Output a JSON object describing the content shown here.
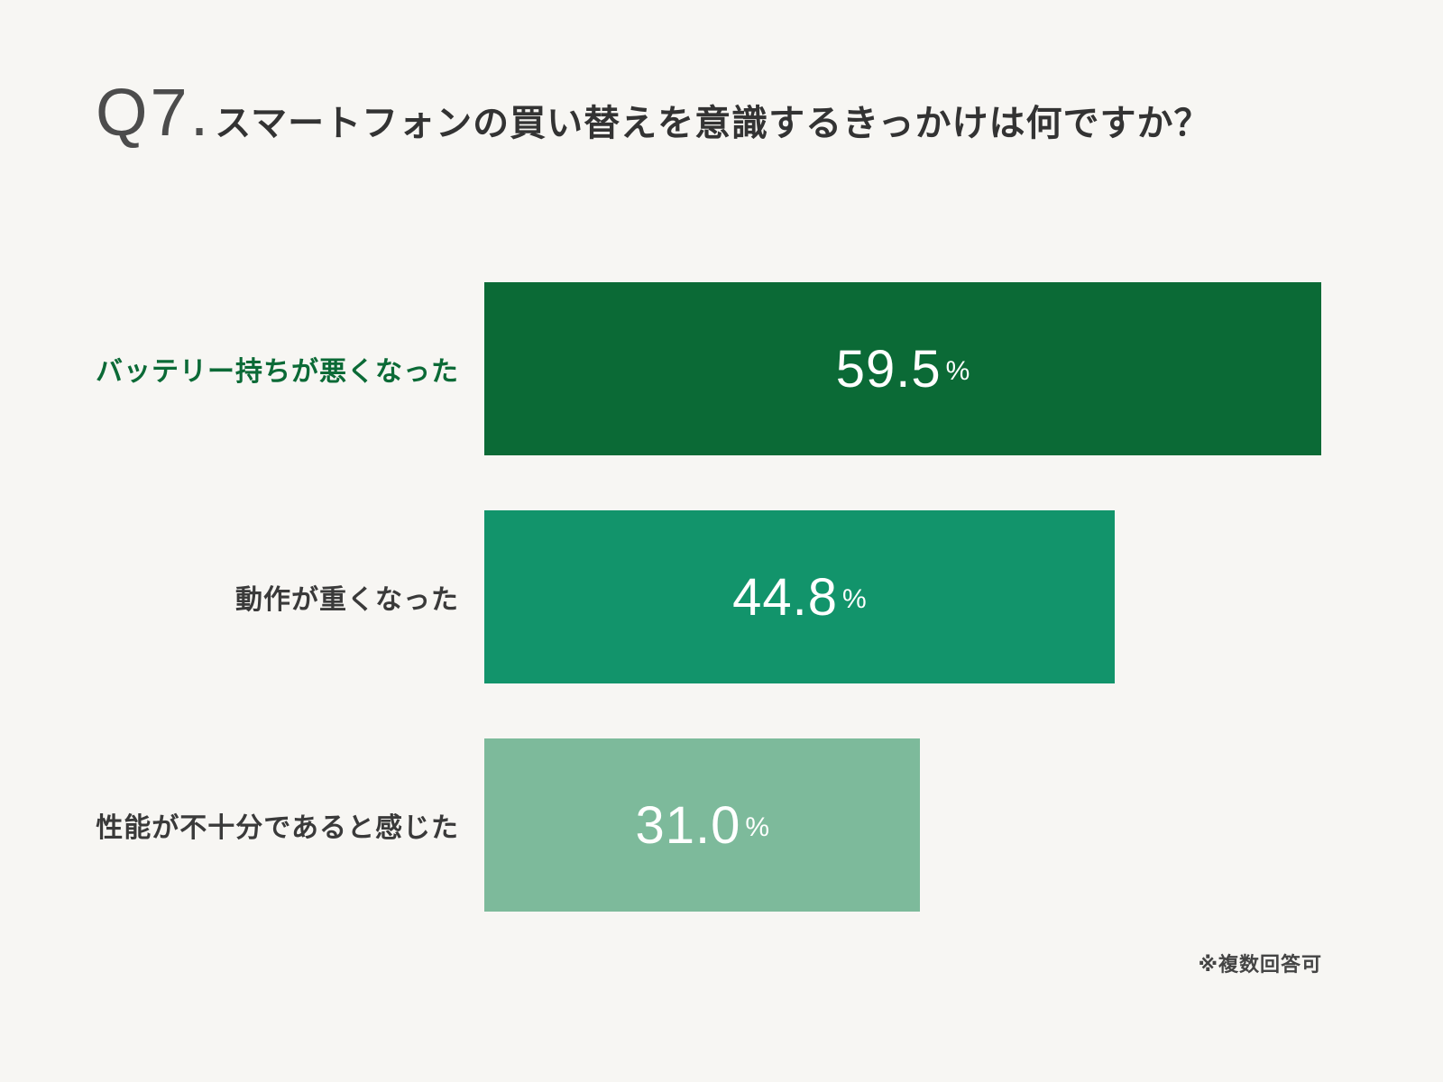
{
  "title": {
    "prefix": "Q7.",
    "text": "スマートフォンの買い替えを意識するきっかけは何ですか？"
  },
  "footnote": "※複数回答可",
  "chart_data": {
    "type": "bar",
    "orientation": "horizontal",
    "title": "Q7. スマートフォンの買い替えを意識するきっかけは何ですか？",
    "categories": [
      "バッテリー持ちが悪くなった",
      "動作が重くなった",
      "性能が不十分であると感じた"
    ],
    "values": [
      59.5,
      44.8,
      31.0
    ],
    "value_labels": [
      "59.5",
      "44.8",
      "31.0"
    ],
    "unit": "%",
    "xlim": [
      0,
      59.5
    ],
    "grid": false,
    "legend": false,
    "bar_colors": [
      "#0b6a36",
      "#12946b",
      "#7dba9b"
    ],
    "label_colors": [
      "#0b6a36",
      "#3a3a3a",
      "#3a3a3a"
    ],
    "note": "※複数回答可"
  }
}
